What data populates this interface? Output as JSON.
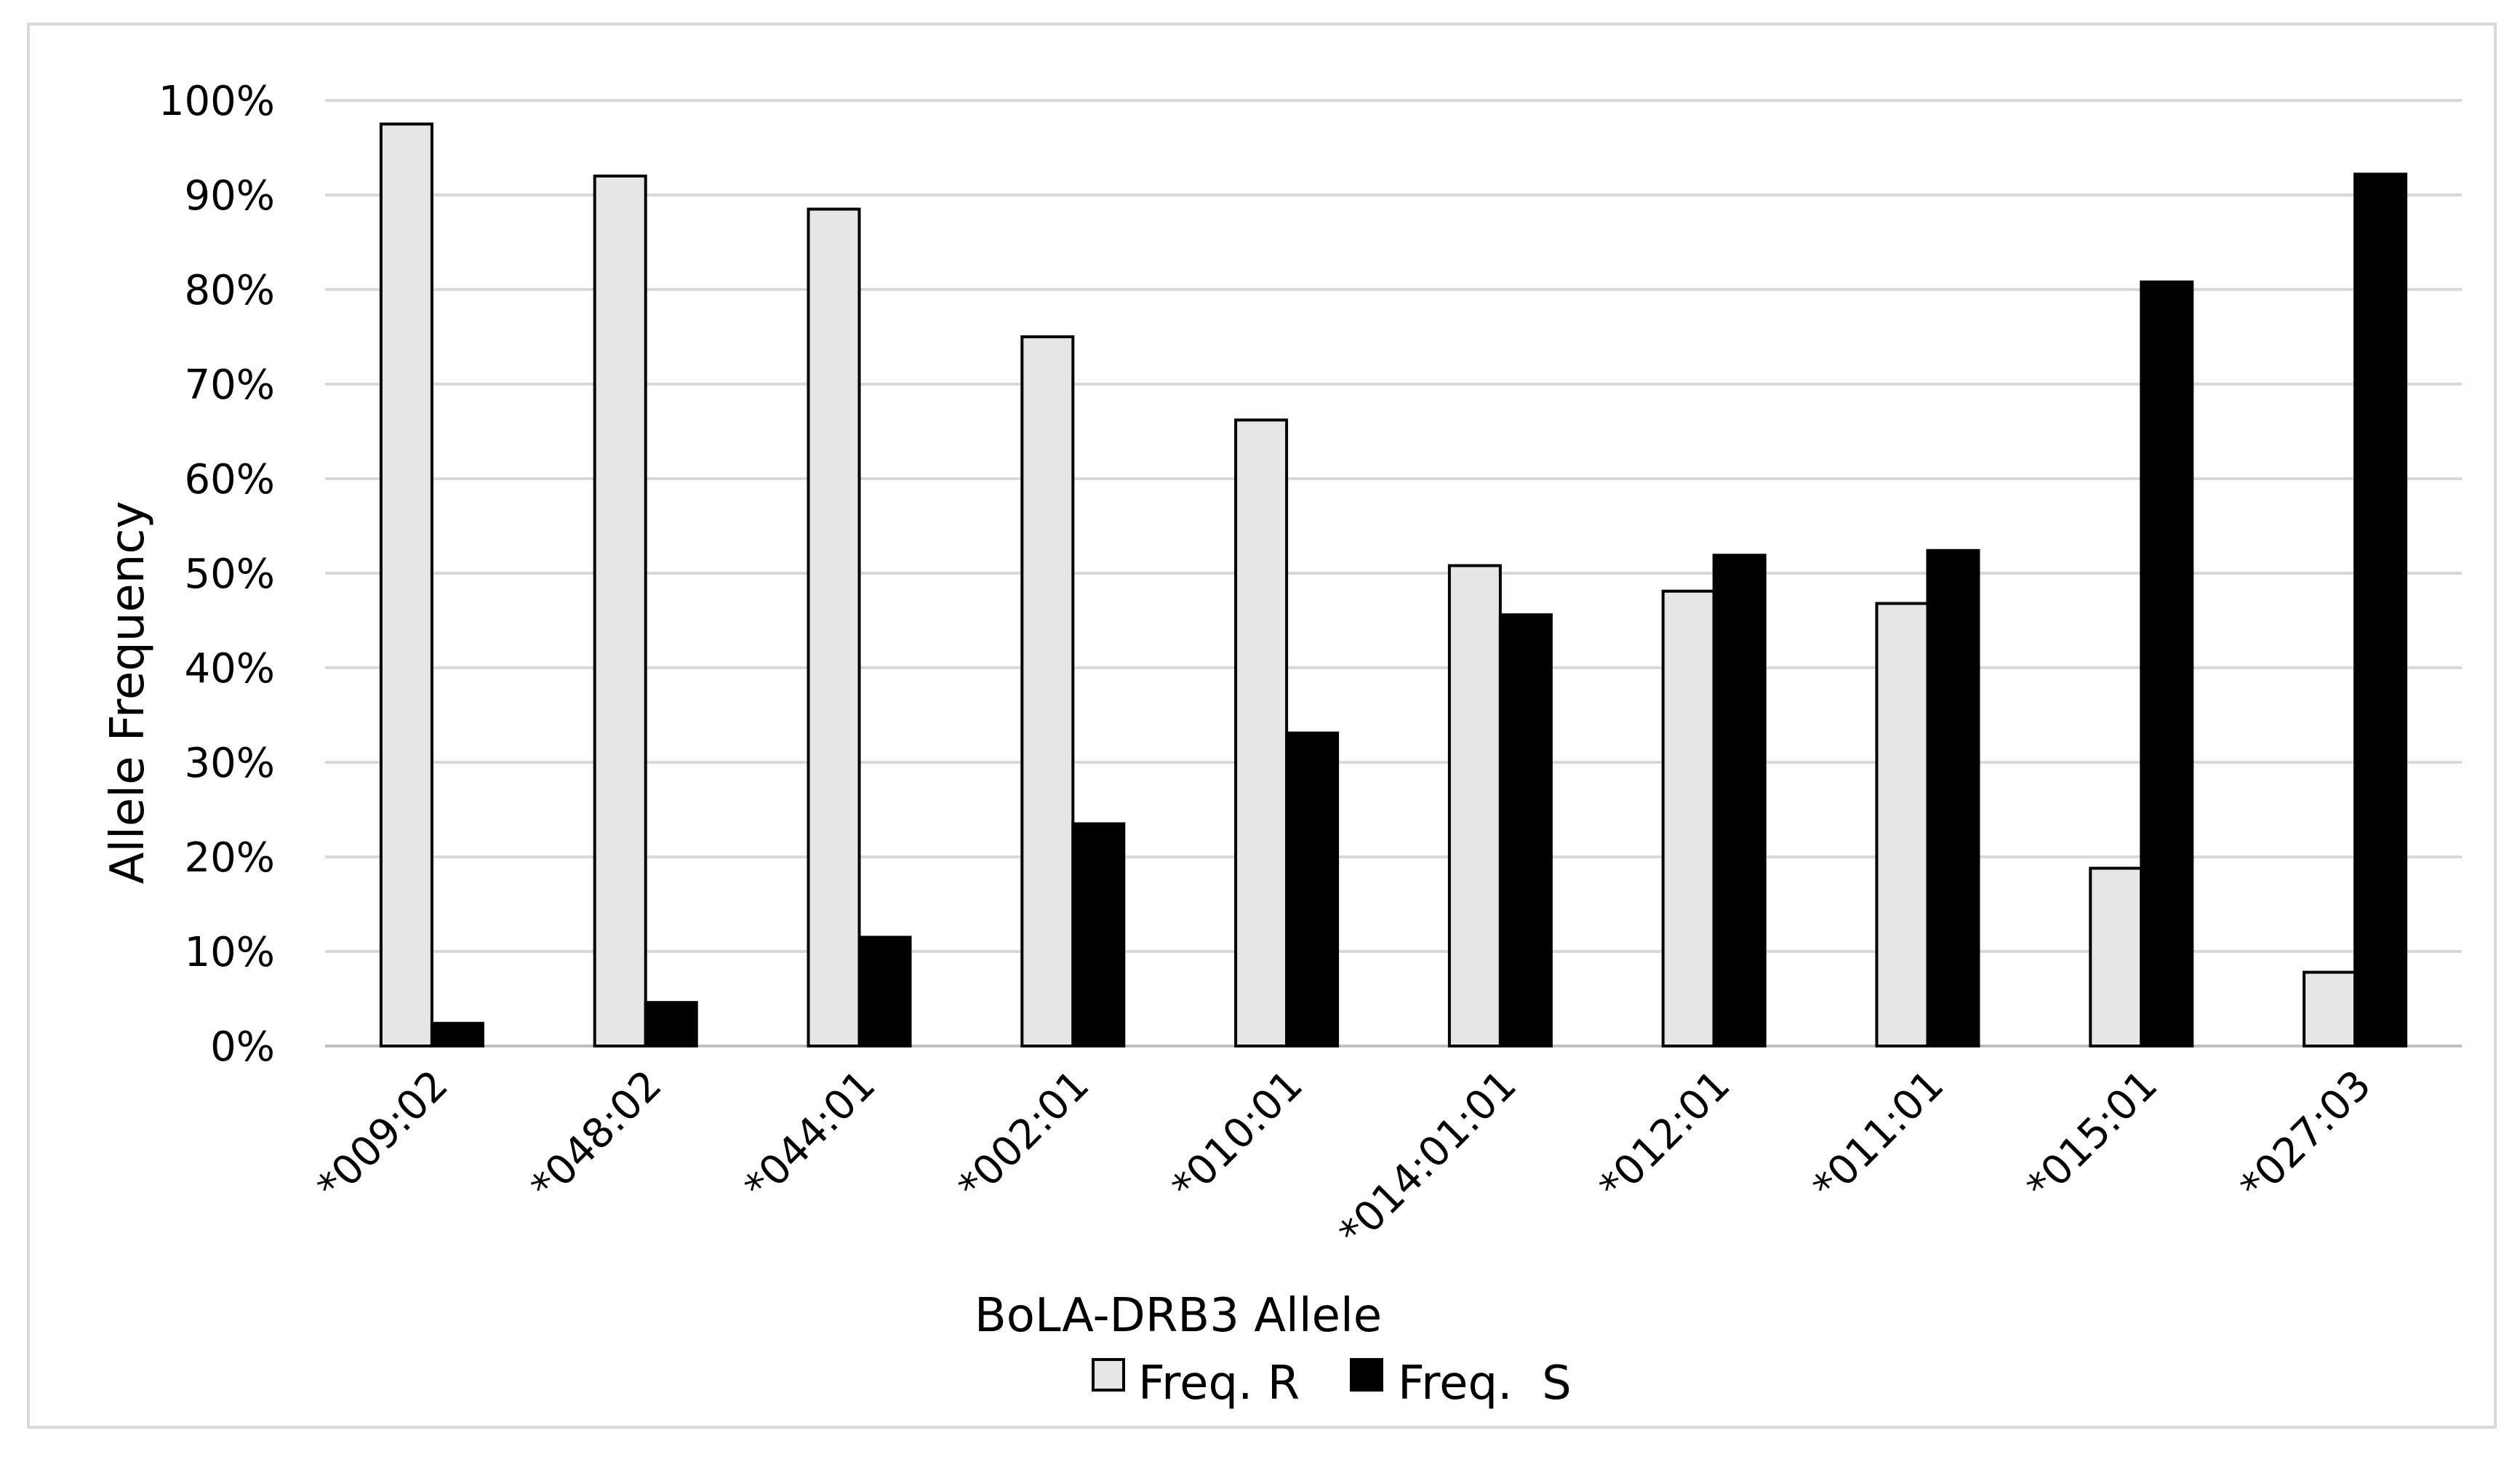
{
  "chart_data": {
    "type": "bar",
    "title": "",
    "xlabel": "BoLA-DRB3 Allele",
    "ylabel": "Allele Frequency",
    "ylim": [
      0,
      100
    ],
    "y_ticks": [
      "0%",
      "10%",
      "20%",
      "30%",
      "40%",
      "50%",
      "60%",
      "70%",
      "80%",
      "90%",
      "100%"
    ],
    "y_tick_values": [
      0,
      10,
      20,
      30,
      40,
      50,
      60,
      70,
      80,
      90,
      100
    ],
    "categories": [
      "*009:02",
      "*048:02",
      "*044:01",
      "*002:01",
      "*010:01",
      "*014:01:01",
      "*012:01",
      "*011:01",
      "*015:01",
      "*027:03"
    ],
    "series": [
      {
        "name": "Freq. R",
        "color": "#e6e6e6",
        "values": [
          97.5,
          92.0,
          88.5,
          75.0,
          66.2,
          50.8,
          48.1,
          46.8,
          18.8,
          7.8
        ]
      },
      {
        "name": "Freq.  S",
        "color": "#000000",
        "values": [
          2.4,
          4.6,
          11.5,
          23.5,
          33.1,
          45.6,
          51.9,
          52.4,
          80.8,
          92.2
        ]
      }
    ],
    "grid": true,
    "legend": "bottom",
    "colors": {
      "gridline": "#d9d9d9",
      "bar_outline": "#000000",
      "frame": "#d9d9d9"
    }
  }
}
